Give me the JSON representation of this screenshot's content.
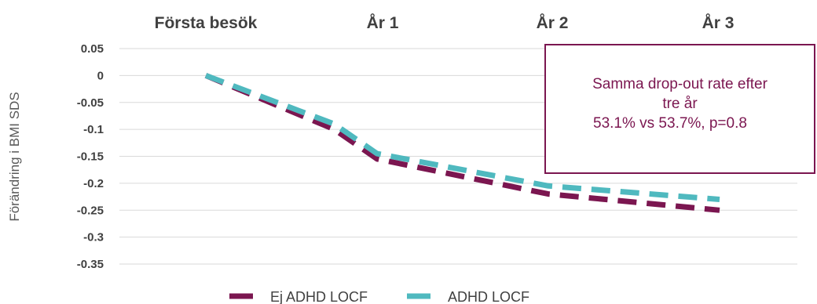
{
  "chart_data": {
    "type": "line",
    "ylabel": "Förändring i BMI SDS",
    "xlabel": "",
    "title": "",
    "ylim": [
      -0.35,
      0.05
    ],
    "yticks": [
      "0.05",
      "0",
      "-0.05",
      "-0.1",
      "-0.15",
      "-0.2",
      "-0.25",
      "-0.3",
      "-0.35"
    ],
    "periods": [
      "Första besök",
      "År 1",
      "År 2",
      "År 3"
    ],
    "x": [
      0,
      0.75,
      1,
      2,
      3
    ],
    "grid": true,
    "legend": "bottom",
    "series": [
      {
        "name": "Ej ADHD LOCF",
        "color": "#7b1650",
        "dash": true,
        "values": [
          0,
          -0.1,
          -0.155,
          -0.22,
          -0.25
        ]
      },
      {
        "name": "ADHD LOCF",
        "color": "#4fb9bf",
        "dash": true,
        "values": [
          0,
          -0.09,
          -0.145,
          -0.205,
          -0.23
        ]
      }
    ],
    "annotation": {
      "lines": [
        "Samma drop-out rate efter",
        "tre år",
        "53.1% vs 53.7%, p=0.8"
      ],
      "color": "#7b1650"
    }
  }
}
